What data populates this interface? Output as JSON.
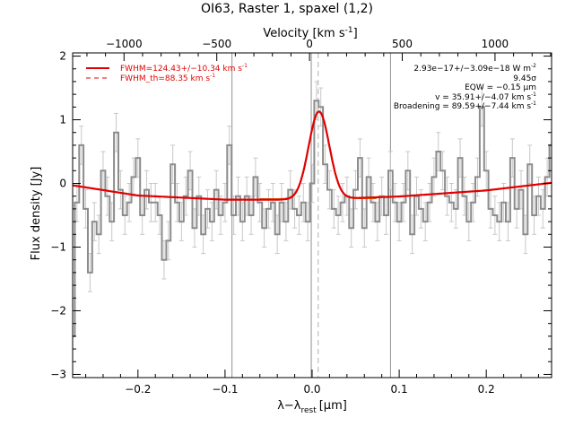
{
  "chart_data": {
    "type": "line",
    "title": "OI63, Raster 1, spaxel (1,2)",
    "xlabel": "λ−λ",
    "xlabel_sub": "rest",
    "xlabel_unit": "[μm]",
    "ylabel": "Flux density [Jy]",
    "top_axis": {
      "label": "Velocity [km s",
      "label_sup": "-1",
      "label_close": "]",
      "ticks": [
        -1000,
        -500,
        0,
        500,
        1000
      ],
      "tick_labels": [
        "−1000",
        "−500",
        "0",
        "500",
        "1000"
      ],
      "range": [
        -1277,
        1305
      ]
    },
    "xlim": [
      -0.275,
      0.275
    ],
    "ylim": [
      -3.05,
      2.05
    ],
    "x_ticks": [
      -0.2,
      -0.1,
      0.0,
      0.1,
      0.2
    ],
    "x_tick_labels": [
      "−0.2",
      "−0.1",
      "0.0",
      "0.1",
      "0.2"
    ],
    "y_ticks": [
      -3,
      -2,
      -1,
      0,
      1,
      2
    ],
    "y_tick_labels": [
      "−3",
      "−2",
      "−1",
      "0",
      "1",
      "2"
    ],
    "vertical_lines": {
      "solid": [
        -0.092,
        -0.001,
        0.09
      ],
      "dashed": [
        0.007
      ]
    },
    "legend": {
      "placement": "top-left",
      "entries": [
        {
          "label": "FWHM=124.43+/−10.34 km s",
          "sup": "-1",
          "style": "solid",
          "color": "#e00000"
        },
        {
          "label": "FWHM_th=88.35 km s",
          "sup": "-1",
          "style": "dashed",
          "color": "#e00000"
        }
      ]
    },
    "annotations": [
      {
        "text": "2.93e−17+/−3.09e−18 W m",
        "sup": "-2"
      },
      {
        "text": "9.45σ",
        "sup": ""
      },
      {
        "text": "EQW = −0.15 μm",
        "sup": ""
      },
      {
        "text": "v = 35.91+/−4.07 km s",
        "sup": "-1"
      },
      {
        "text": "Broadening = 89.59+/−7.44 km s",
        "sup": "-1"
      }
    ],
    "series": [
      {
        "kind": "histogram",
        "color": "#8c8c8c",
        "x": [
          -0.275,
          -0.27,
          -0.265,
          -0.26,
          -0.255,
          -0.25,
          -0.245,
          -0.24,
          -0.235,
          -0.23,
          -0.225,
          -0.22,
          -0.215,
          -0.21,
          -0.205,
          -0.2,
          -0.195,
          -0.19,
          -0.185,
          -0.18,
          -0.175,
          -0.17,
          -0.165,
          -0.16,
          -0.155,
          -0.15,
          -0.145,
          -0.14,
          -0.135,
          -0.13,
          -0.125,
          -0.12,
          -0.115,
          -0.11,
          -0.105,
          -0.1,
          -0.095,
          -0.09,
          -0.085,
          -0.08,
          -0.075,
          -0.07,
          -0.065,
          -0.06,
          -0.055,
          -0.05,
          -0.045,
          -0.04,
          -0.035,
          -0.03,
          -0.025,
          -0.02,
          -0.015,
          -0.01,
          -0.005,
          0.0,
          0.005,
          0.01,
          0.015,
          0.02,
          0.025,
          0.03,
          0.035,
          0.04,
          0.045,
          0.05,
          0.055,
          0.06,
          0.065,
          0.07,
          0.075,
          0.08,
          0.085,
          0.09,
          0.095,
          0.1,
          0.105,
          0.11,
          0.115,
          0.12,
          0.125,
          0.13,
          0.135,
          0.14,
          0.145,
          0.15,
          0.155,
          0.16,
          0.165,
          0.17,
          0.175,
          0.18,
          0.185,
          0.19,
          0.195,
          0.2,
          0.205,
          0.21,
          0.215,
          0.22,
          0.225,
          0.23,
          0.235,
          0.24,
          0.245,
          0.25,
          0.255,
          0.26,
          0.265,
          0.27,
          0.275
        ],
        "y": [
          -2.4,
          -0.3,
          0.6,
          -0.4,
          -1.4,
          -0.6,
          -0.8,
          0.2,
          -0.2,
          -0.6,
          0.8,
          -0.1,
          -0.5,
          -0.3,
          0.1,
          0.4,
          -0.5,
          -0.1,
          -0.3,
          -0.3,
          -0.5,
          -1.2,
          -0.9,
          0.3,
          -0.3,
          -0.6,
          -0.2,
          0.2,
          -0.7,
          -0.2,
          -0.8,
          -0.4,
          -0.6,
          -0.1,
          -0.5,
          -0.3,
          0.6,
          -0.5,
          -0.2,
          -0.6,
          -0.2,
          -0.5,
          0.1,
          -0.3,
          -0.7,
          -0.4,
          -0.3,
          -0.8,
          -0.3,
          -0.6,
          -0.1,
          -0.4,
          -0.5,
          -0.3,
          -0.6,
          0.0,
          1.3,
          1.2,
          0.3,
          -0.1,
          -0.4,
          -0.5,
          -0.3,
          -0.2,
          -0.7,
          -0.1,
          0.4,
          -0.7,
          0.1,
          -0.3,
          -0.6,
          -0.2,
          -0.5,
          0.2,
          -0.3,
          -0.6,
          -0.3,
          0.2,
          -0.8,
          -0.2,
          -0.4,
          -0.6,
          -0.3,
          0.1,
          0.5,
          0.2,
          -0.2,
          -0.3,
          -0.4,
          0.4,
          -0.2,
          -0.6,
          -0.3,
          0.1,
          1.2,
          0.2,
          -0.4,
          -0.5,
          -0.6,
          -0.3,
          -0.6,
          0.4,
          -0.4,
          -0.1,
          -0.8,
          0.3,
          -0.5,
          -0.2,
          -0.4,
          0.1,
          0.6
        ],
        "err": 0.3
      },
      {
        "kind": "fit-total",
        "color": "#e00000",
        "amplitude": 1.38,
        "center": 0.0079,
        "sigma": 0.0119,
        "baseline": [
          {
            "x": -0.275,
            "y": -0.03
          },
          {
            "x": -0.2,
            "y": -0.19
          },
          {
            "x": -0.1,
            "y": -0.255
          },
          {
            "x": 0.0,
            "y": -0.255
          },
          {
            "x": 0.1,
            "y": -0.205
          },
          {
            "x": 0.2,
            "y": -0.11
          },
          {
            "x": 0.275,
            "y": 0.01
          }
        ]
      },
      {
        "kind": "fit-component",
        "color": "#e07000",
        "amplitude": 1.38,
        "center": 0.0079,
        "sigma": 0.0119,
        "level": -0.24
      }
    ]
  }
}
